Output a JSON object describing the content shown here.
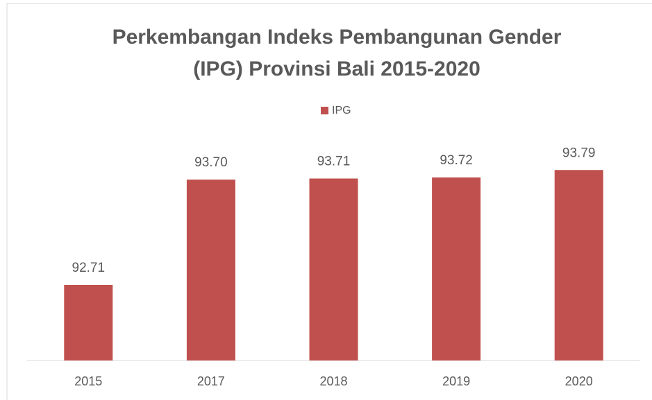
{
  "chart_data": {
    "type": "bar",
    "title": [
      "Perkembangan Indeks Pembangunan Gender",
      "(IPG) Provinsi Bali 2015-2020"
    ],
    "categories": [
      "2015",
      "2017",
      "2018",
      "2019",
      "2020"
    ],
    "series": [
      {
        "name": "IPG",
        "color": "#c0504d",
        "values": [
          92.71,
          93.7,
          93.71,
          93.72,
          93.79
        ],
        "value_labels": [
          "92.71",
          "93.70",
          "93.71",
          "93.72",
          "93.79"
        ]
      }
    ],
    "ylim": [
      92,
      94
    ]
  }
}
